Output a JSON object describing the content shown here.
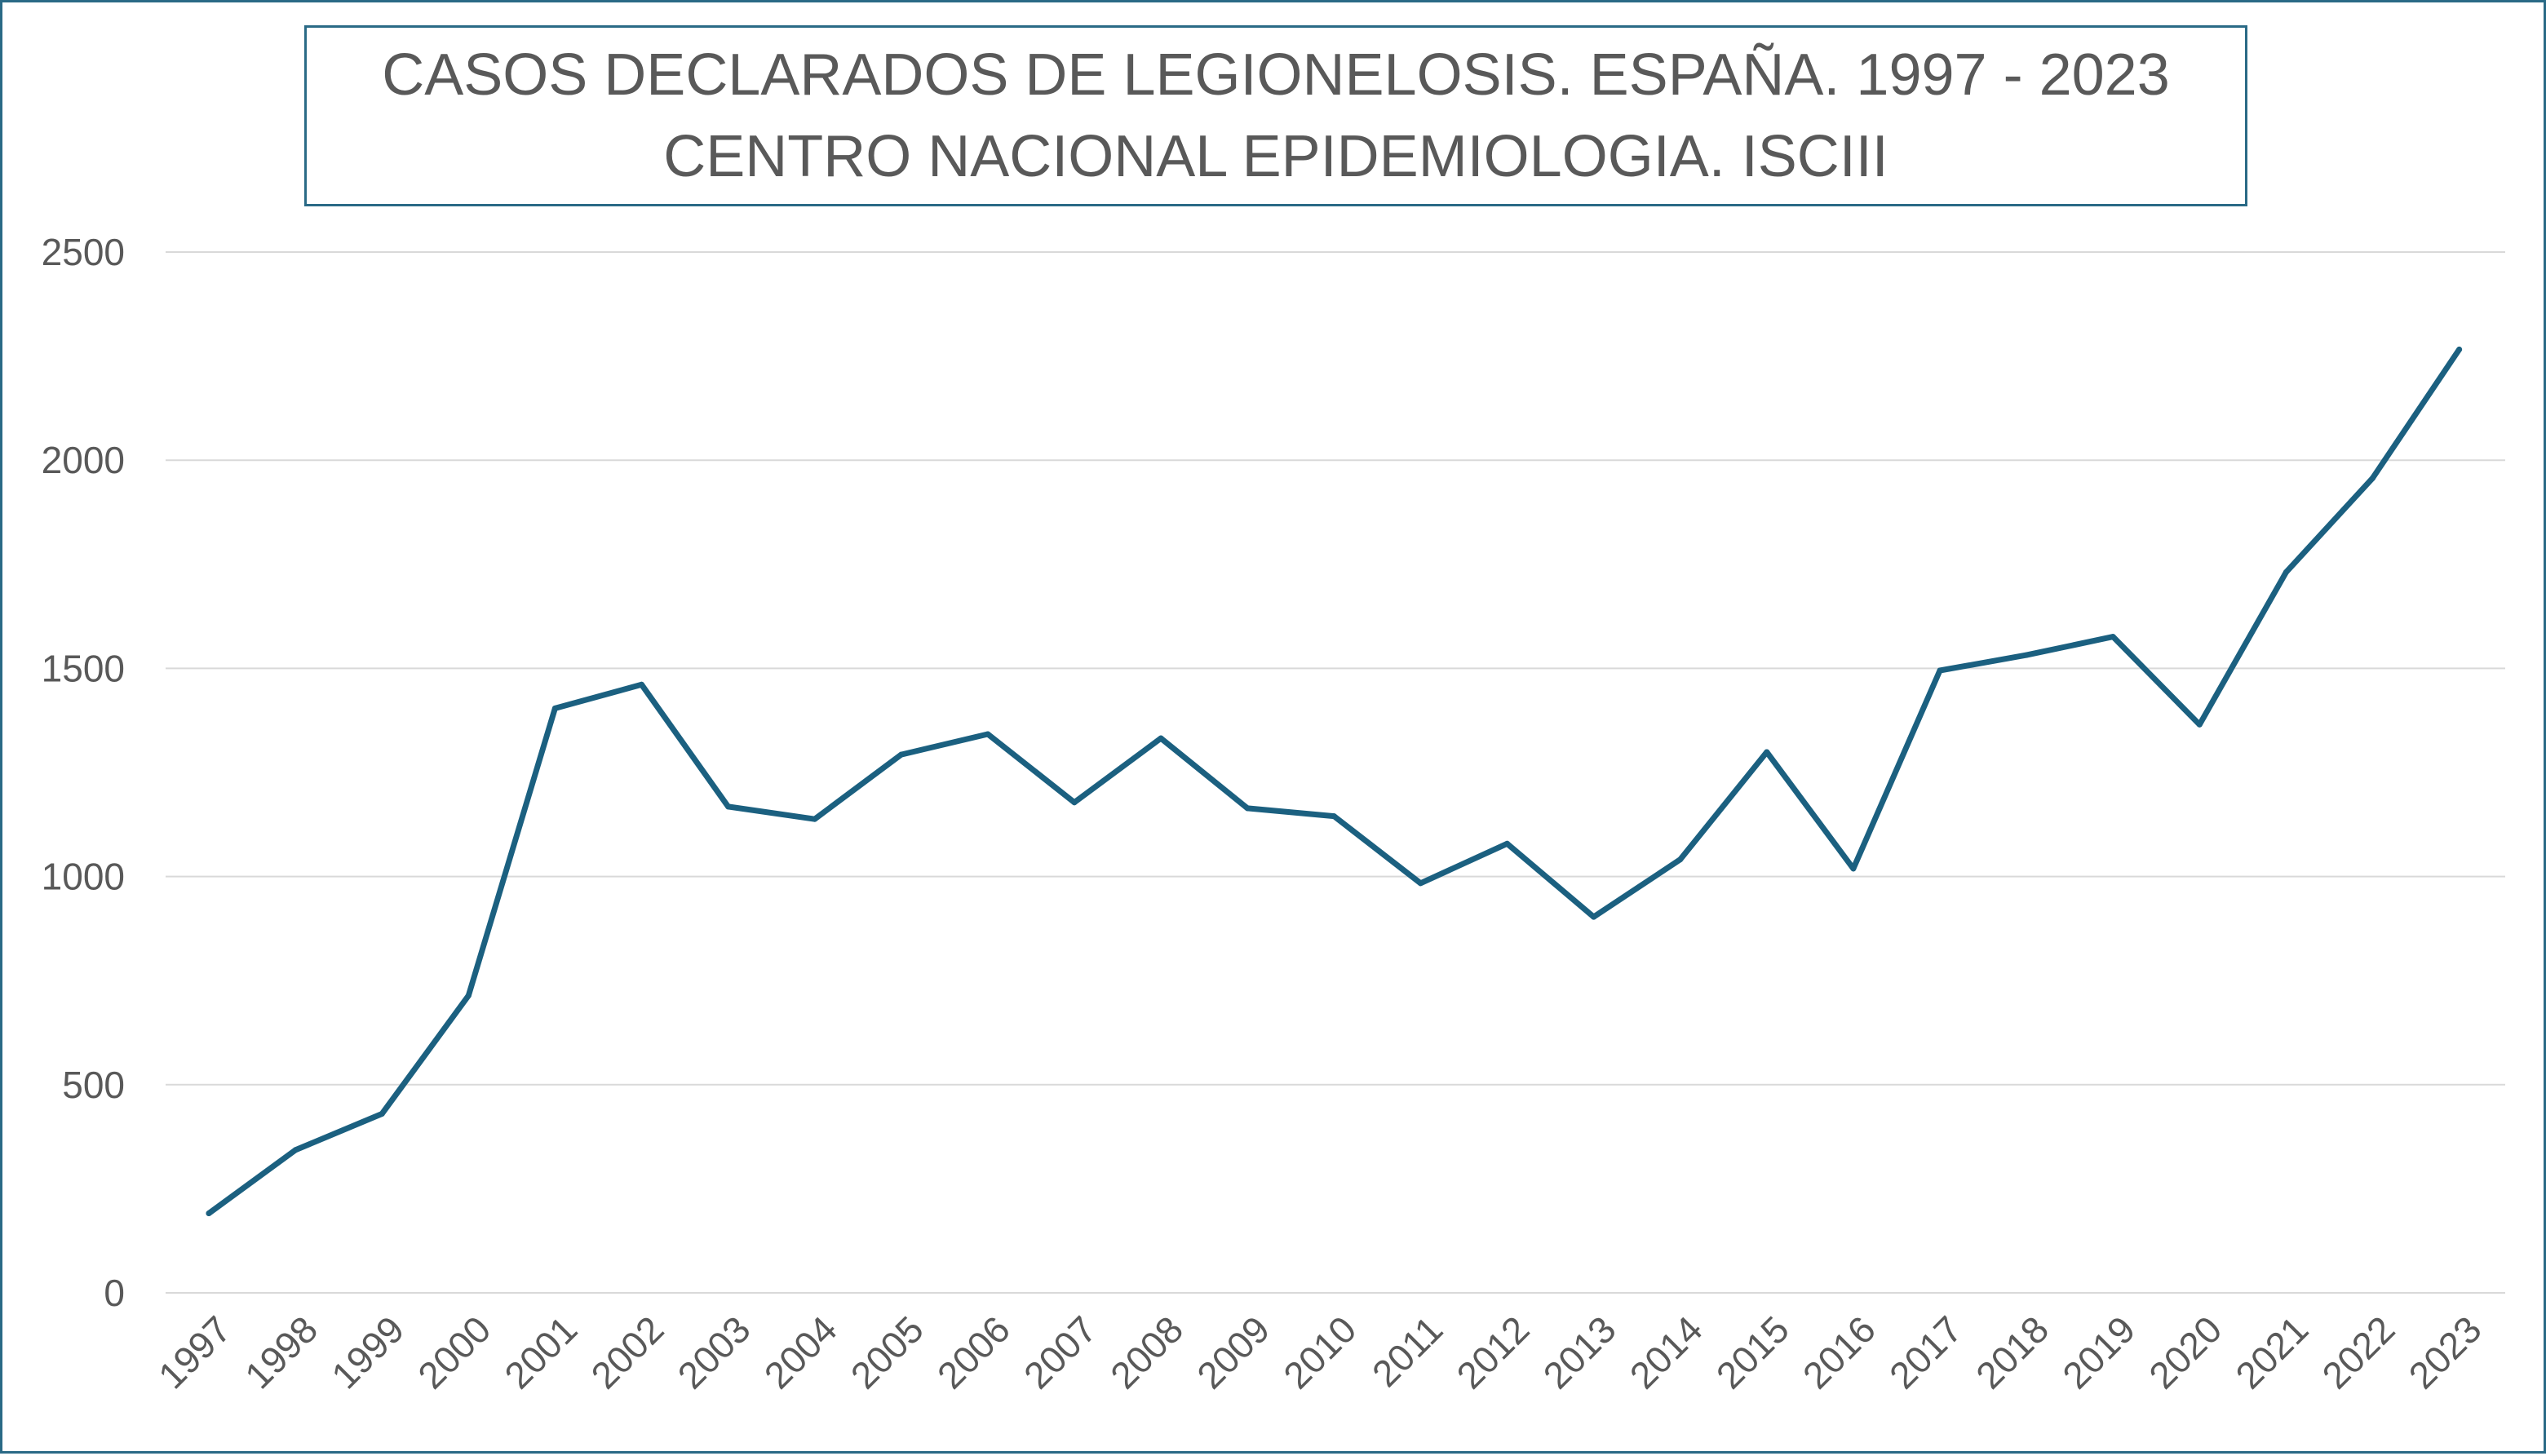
{
  "chart_data": {
    "type": "line",
    "title": "CASOS DECLARADOS  DE LEGIONELOSIS. ESPAÑA. 1997 - 2023",
    "subtitle": "CENTRO NACIONAL EPIDEMIOLOGIA. ISCIII",
    "xlabel": "",
    "ylabel": "",
    "categories": [
      "1997",
      "1998",
      "1999",
      "2000",
      "2001",
      "2002",
      "2003",
      "2004",
      "2005",
      "2006",
      "2007",
      "2008",
      "2009",
      "2010",
      "2011",
      "2012",
      "2013",
      "2014",
      "2015",
      "2016",
      "2017",
      "2018",
      "2019",
      "2020",
      "2021",
      "2022",
      "2023"
    ],
    "series": [
      {
        "values": [
          191,
          343,
          430,
          714,
          1404,
          1461,
          1168,
          1138,
          1293,
          1342,
          1178,
          1332,
          1164,
          1145,
          984,
          1079,
          903,
          1041,
          1299,
          1019,
          1495,
          1532,
          1576,
          1365,
          1731,
          1957,
          2266
        ]
      }
    ],
    "ylim": [
      0,
      2500
    ],
    "yticks": [
      "0",
      "500",
      "1000",
      "1500",
      "2000",
      "2500"
    ],
    "grid": true,
    "legend": "none",
    "colors": {
      "line": "#1b6080",
      "grid": "#d9d9d9",
      "text": "#595959",
      "frame": "#2a6a86"
    }
  }
}
